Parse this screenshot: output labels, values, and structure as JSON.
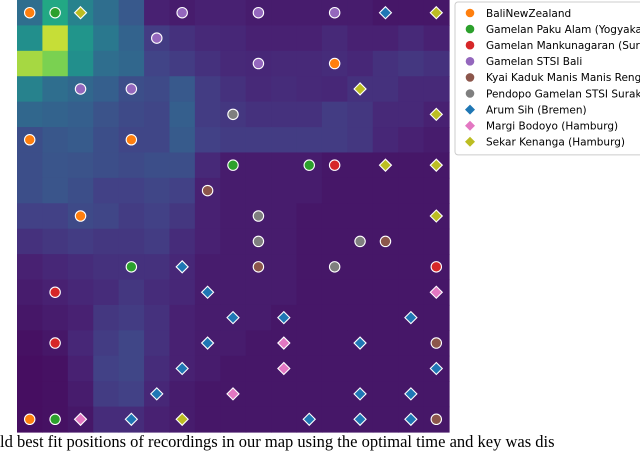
{
  "chart_data": {
    "type": "heatmap",
    "title": "",
    "xlabel": "",
    "ylabel": "",
    "grid": false,
    "legend_placement": "top-right",
    "heatmap": {
      "colormap": "viridis",
      "vmin": 0,
      "vmax": 1,
      "values": [
        [
          0.45,
          0.75,
          0.55,
          0.45,
          0.35,
          0.12,
          0.1,
          0.12,
          0.12,
          0.1,
          0.1,
          0.1,
          0.1,
          0.1,
          0.08,
          0.08,
          0.08
        ],
        [
          0.62,
          0.95,
          0.65,
          0.5,
          0.4,
          0.22,
          0.18,
          0.15,
          0.14,
          0.12,
          0.12,
          0.12,
          0.15,
          0.12,
          0.12,
          0.15,
          0.12
        ],
        [
          0.92,
          0.88,
          0.62,
          0.45,
          0.42,
          0.25,
          0.22,
          0.18,
          0.15,
          0.14,
          0.15,
          0.15,
          0.16,
          0.14,
          0.18,
          0.2,
          0.18
        ],
        [
          0.55,
          0.45,
          0.42,
          0.38,
          0.3,
          0.28,
          0.35,
          0.22,
          0.18,
          0.15,
          0.16,
          0.15,
          0.14,
          0.18,
          0.18,
          0.15,
          0.15
        ],
        [
          0.42,
          0.4,
          0.38,
          0.32,
          0.28,
          0.26,
          0.38,
          0.22,
          0.2,
          0.18,
          0.18,
          0.18,
          0.22,
          0.2,
          0.15,
          0.15,
          0.12
        ],
        [
          0.3,
          0.34,
          0.36,
          0.3,
          0.26,
          0.26,
          0.36,
          0.24,
          0.22,
          0.22,
          0.22,
          0.22,
          0.22,
          0.2,
          0.14,
          0.12,
          0.1
        ],
        [
          0.3,
          0.33,
          0.32,
          0.3,
          0.28,
          0.3,
          0.3,
          0.15,
          0.1,
          0.1,
          0.1,
          0.1,
          0.08,
          0.08,
          0.08,
          0.08,
          0.08
        ],
        [
          0.3,
          0.33,
          0.3,
          0.24,
          0.24,
          0.26,
          0.24,
          0.12,
          0.1,
          0.1,
          0.1,
          0.1,
          0.08,
          0.08,
          0.08,
          0.08,
          0.08
        ],
        [
          0.24,
          0.24,
          0.28,
          0.26,
          0.22,
          0.24,
          0.2,
          0.12,
          0.1,
          0.1,
          0.1,
          0.08,
          0.08,
          0.08,
          0.08,
          0.08,
          0.08
        ],
        [
          0.18,
          0.2,
          0.22,
          0.2,
          0.2,
          0.22,
          0.16,
          0.12,
          0.1,
          0.1,
          0.1,
          0.08,
          0.08,
          0.08,
          0.08,
          0.08,
          0.08
        ],
        [
          0.12,
          0.14,
          0.16,
          0.18,
          0.18,
          0.18,
          0.14,
          0.1,
          0.1,
          0.1,
          0.1,
          0.08,
          0.08,
          0.08,
          0.08,
          0.08,
          0.08
        ],
        [
          0.1,
          0.12,
          0.14,
          0.16,
          0.2,
          0.16,
          0.14,
          0.1,
          0.1,
          0.1,
          0.1,
          0.08,
          0.08,
          0.08,
          0.08,
          0.08,
          0.08
        ],
        [
          0.08,
          0.1,
          0.12,
          0.2,
          0.22,
          0.18,
          0.12,
          0.1,
          0.1,
          0.1,
          0.08,
          0.08,
          0.08,
          0.08,
          0.08,
          0.08,
          0.08
        ],
        [
          0.06,
          0.08,
          0.14,
          0.22,
          0.26,
          0.18,
          0.12,
          0.1,
          0.1,
          0.08,
          0.08,
          0.08,
          0.08,
          0.08,
          0.08,
          0.08,
          0.08
        ],
        [
          0.05,
          0.06,
          0.12,
          0.24,
          0.26,
          0.16,
          0.12,
          0.1,
          0.08,
          0.08,
          0.08,
          0.08,
          0.08,
          0.08,
          0.08,
          0.08,
          0.08
        ],
        [
          0.05,
          0.06,
          0.1,
          0.22,
          0.24,
          0.14,
          0.1,
          0.08,
          0.08,
          0.08,
          0.08,
          0.08,
          0.08,
          0.08,
          0.08,
          0.08,
          0.08
        ],
        [
          0.05,
          0.06,
          0.08,
          0.16,
          0.16,
          0.12,
          0.1,
          0.08,
          0.08,
          0.08,
          0.08,
          0.08,
          0.08,
          0.08,
          0.08,
          0.08,
          0.08
        ]
      ]
    },
    "series": [
      {
        "name": "BaliNewZealand",
        "color": "#ff7f0e",
        "marker": "circle",
        "points": [
          [
            0,
            0
          ],
          [
            12,
            2
          ],
          [
            0,
            5
          ],
          [
            4,
            5
          ],
          [
            2,
            8
          ],
          [
            0,
            16
          ]
        ]
      },
      {
        "name": "Gamelan  Paku Alam  (Yogyakarta)",
        "color": "#2ca02c",
        "marker": "circle",
        "points": [
          [
            1,
            0
          ],
          [
            8,
            6
          ],
          [
            11,
            6
          ],
          [
            4,
            10
          ],
          [
            1,
            16
          ]
        ]
      },
      {
        "name": "Gamelan Mankunagaran (Surakarta)",
        "color": "#d62728",
        "marker": "circle",
        "points": [
          [
            12,
            6
          ],
          [
            16,
            10
          ],
          [
            1,
            11
          ],
          [
            1,
            13
          ]
        ]
      },
      {
        "name": "Gamelan STSI Bali",
        "color": "#9467bd",
        "marker": "circle",
        "points": [
          [
            6,
            0
          ],
          [
            9,
            0
          ],
          [
            12,
            0
          ],
          [
            5,
            1
          ],
          [
            9,
            2
          ],
          [
            2,
            3
          ],
          [
            4,
            3
          ]
        ]
      },
      {
        "name": "Kyai Kaduk Manis Manis Rengga",
        "color": "#8c564b",
        "marker": "circle",
        "points": [
          [
            7,
            7
          ],
          [
            14,
            9
          ],
          [
            9,
            10
          ],
          [
            16,
            13
          ],
          [
            16,
            16
          ]
        ]
      },
      {
        "name": "Pendopo Gamelan STSI Surakarta",
        "color": "#7f7f7f",
        "marker": "circle",
        "points": [
          [
            8,
            4
          ],
          [
            9,
            8
          ],
          [
            9,
            9
          ],
          [
            13,
            9
          ],
          [
            12,
            10
          ]
        ]
      },
      {
        "name": "Arum Sih (Bremen)",
        "color": "#1f77b4",
        "marker": "diamond",
        "points": [
          [
            14,
            0
          ],
          [
            6,
            10
          ],
          [
            7,
            11
          ],
          [
            8,
            12
          ],
          [
            10,
            12
          ],
          [
            15,
            12
          ],
          [
            7,
            13
          ],
          [
            13,
            13
          ],
          [
            6,
            14
          ],
          [
            16,
            14
          ],
          [
            5,
            15
          ],
          [
            13,
            15
          ],
          [
            15,
            15
          ],
          [
            4,
            16
          ],
          [
            11,
            16
          ],
          [
            13,
            16
          ],
          [
            15,
            16
          ]
        ]
      },
      {
        "name": "Margi Bodoyo (Hamburg)",
        "color": "#e377c2",
        "marker": "diamond",
        "points": [
          [
            16,
            11
          ],
          [
            10,
            13
          ],
          [
            10,
            14
          ],
          [
            8,
            15
          ],
          [
            2,
            16
          ]
        ]
      },
      {
        "name": "Sekar Kenanga (Hamburg)",
        "color": "#bcbd22",
        "marker": "diamond",
        "points": [
          [
            2,
            0
          ],
          [
            16,
            0
          ],
          [
            13,
            3
          ],
          [
            16,
            4
          ],
          [
            14,
            6
          ],
          [
            16,
            6
          ],
          [
            16,
            8
          ],
          [
            6,
            16
          ]
        ]
      }
    ]
  },
  "caption": "ld best fit positions of recordings in our map using the optimal time and key was dis"
}
